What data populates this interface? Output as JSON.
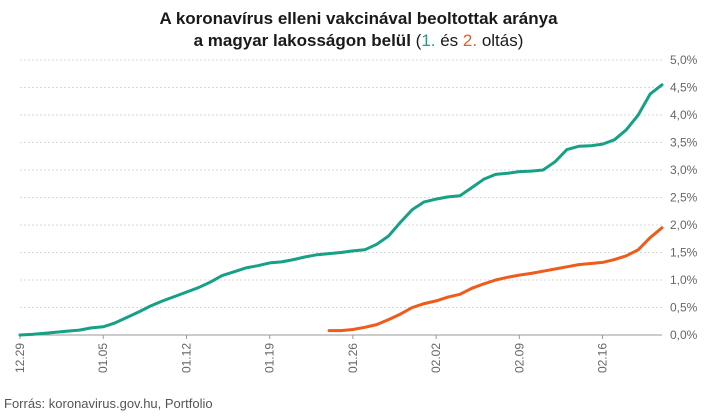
{
  "title_line1": "A koronavírus elleni vakcinával beoltottak aránya",
  "title_line2_prefix": "a magyar lakosságon belül",
  "title_paren_open": " (",
  "title_dose1": "1.",
  "title_and": " és ",
  "title_dose2": "2.",
  "title_suffix": " oltás)",
  "source": "Forrás: koronavirus.gov.hu, Portfolio",
  "chart_data": {
    "type": "line",
    "x_start_date": "2020-12-29",
    "x_end_date": "2021-02-21",
    "ylim": [
      0,
      5.0
    ],
    "y_ticks": [
      "0,0%",
      "0,5%",
      "1,0%",
      "1,5%",
      "2,0%",
      "2,5%",
      "3,0%",
      "3,5%",
      "4,0%",
      "4,5%",
      "5,0%"
    ],
    "x_ticks": [
      "12.29",
      "01.05",
      "01.12",
      "01.19",
      "01.26",
      "02.02",
      "02.09",
      "02.16"
    ],
    "grid": true,
    "series": [
      {
        "name": "1.",
        "color": "#16a085",
        "x": [
          "2020-12-29",
          "2020-12-30",
          "2020-12-31",
          "2021-01-01",
          "2021-01-02",
          "2021-01-03",
          "2021-01-04",
          "2021-01-05",
          "2021-01-06",
          "2021-01-07",
          "2021-01-08",
          "2021-01-09",
          "2021-01-10",
          "2021-01-11",
          "2021-01-12",
          "2021-01-13",
          "2021-01-14",
          "2021-01-15",
          "2021-01-16",
          "2021-01-17",
          "2021-01-18",
          "2021-01-19",
          "2021-01-20",
          "2021-01-21",
          "2021-01-22",
          "2021-01-23",
          "2021-01-24",
          "2021-01-25",
          "2021-01-26",
          "2021-01-27",
          "2021-01-28",
          "2021-01-29",
          "2021-01-30",
          "2021-01-31",
          "2021-02-01",
          "2021-02-02",
          "2021-02-03",
          "2021-02-04",
          "2021-02-05",
          "2021-02-06",
          "2021-02-07",
          "2021-02-08",
          "2021-02-09",
          "2021-02-10",
          "2021-02-11",
          "2021-02-12",
          "2021-02-13",
          "2021-02-14",
          "2021-02-15",
          "2021-02-16",
          "2021-02-17",
          "2021-02-18",
          "2021-02-19",
          "2021-02-20",
          "2021-02-21"
        ],
        "values": [
          0.0,
          0.01,
          0.03,
          0.05,
          0.07,
          0.09,
          0.13,
          0.15,
          0.22,
          0.32,
          0.42,
          0.53,
          0.62,
          0.7,
          0.78,
          0.86,
          0.96,
          1.08,
          1.15,
          1.22,
          1.26,
          1.31,
          1.33,
          1.37,
          1.42,
          1.46,
          1.48,
          1.5,
          1.53,
          1.55,
          1.65,
          1.8,
          2.05,
          2.28,
          2.42,
          2.47,
          2.51,
          2.53,
          2.68,
          2.83,
          2.92,
          2.94,
          2.97,
          2.98,
          3.0,
          3.15,
          3.37,
          3.43,
          3.44,
          3.47,
          3.55,
          3.73,
          4.0,
          4.38,
          4.55
        ]
      },
      {
        "name": "2.",
        "color": "#f05a1a",
        "x": [
          "2021-01-24",
          "2021-01-25",
          "2021-01-26",
          "2021-01-27",
          "2021-01-28",
          "2021-01-29",
          "2021-01-30",
          "2021-01-31",
          "2021-02-01",
          "2021-02-02",
          "2021-02-03",
          "2021-02-04",
          "2021-02-05",
          "2021-02-06",
          "2021-02-07",
          "2021-02-08",
          "2021-02-09",
          "2021-02-10",
          "2021-02-11",
          "2021-02-12",
          "2021-02-13",
          "2021-02-14",
          "2021-02-15",
          "2021-02-16",
          "2021-02-17",
          "2021-02-18",
          "2021-02-19",
          "2021-02-20",
          "2021-02-21"
        ],
        "values": [
          0.08,
          0.08,
          0.1,
          0.14,
          0.19,
          0.28,
          0.38,
          0.5,
          0.57,
          0.62,
          0.69,
          0.74,
          0.85,
          0.93,
          1.0,
          1.05,
          1.09,
          1.12,
          1.16,
          1.2,
          1.24,
          1.28,
          1.3,
          1.32,
          1.37,
          1.44,
          1.55,
          1.77,
          1.95
        ]
      }
    ]
  }
}
